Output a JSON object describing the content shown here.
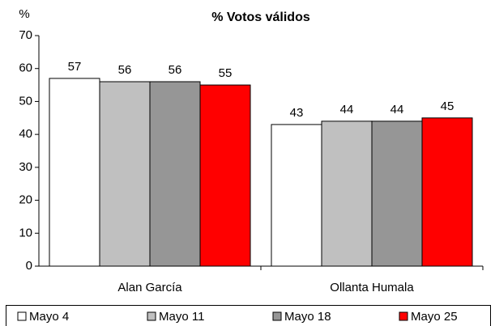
{
  "chart_data": {
    "type": "bar",
    "title": "% Votos válidos",
    "y_label": "%",
    "categories": [
      "Alan García",
      "Ollanta Humala"
    ],
    "series": [
      {
        "name": "Mayo 4",
        "color": "#ffffff",
        "values": [
          57,
          43
        ]
      },
      {
        "name": "Mayo 11",
        "color": "#c0c0c0",
        "values": [
          56,
          44
        ]
      },
      {
        "name": "Mayo 18",
        "color": "#969696",
        "values": [
          56,
          44
        ]
      },
      {
        "name": "Mayo 25",
        "color": "#ff0000",
        "values": [
          55,
          45
        ]
      }
    ],
    "ylim": [
      0,
      70
    ],
    "yticks": [
      0,
      10,
      20,
      30,
      40,
      50,
      60,
      70
    ],
    "grid": false,
    "legend": "bottom"
  }
}
